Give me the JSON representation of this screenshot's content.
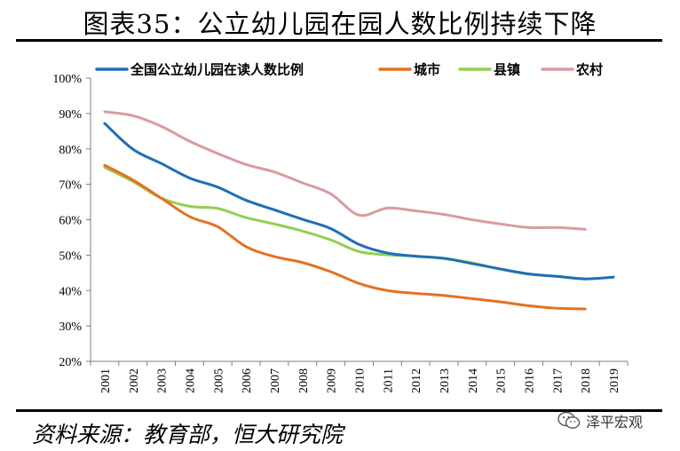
{
  "header": {
    "title": "图表35：公立幼儿园在园人数比例持续下降"
  },
  "footer": {
    "source": "资料来源：教育部，恒大研究院",
    "watermark": "泽平宏观"
  },
  "colors": {
    "national": "#1f6fb5",
    "city": "#e57121",
    "county": "#92d050",
    "rural": "#d99ba0"
  },
  "chart_data": {
    "type": "line",
    "title": "公立幼儿园在园人数比例持续下降",
    "x": [
      "2001",
      "2002",
      "2003",
      "2004",
      "2005",
      "2006",
      "2007",
      "2008",
      "2009",
      "2010",
      "2011",
      "2012",
      "2013",
      "2014",
      "2015",
      "2016",
      "2017",
      "2018",
      "2019"
    ],
    "ylim": [
      20,
      100
    ],
    "yticks": [
      "20%",
      "30%",
      "40%",
      "50%",
      "60%",
      "70%",
      "80%",
      "90%",
      "100%"
    ],
    "ytick_values": [
      20,
      30,
      40,
      50,
      60,
      70,
      80,
      90,
      100
    ],
    "xlabel": "",
    "ylabel": "",
    "grid": false,
    "legend": "top",
    "series": [
      {
        "name": "全国公立幼儿园在读人数比例",
        "color_key": "national",
        "values": [
          87.2,
          79.9,
          75.9,
          71.8,
          69.2,
          65.5,
          62.8,
          60.1,
          57.5,
          53.0,
          50.6,
          49.7,
          49.1,
          47.6,
          46.1,
          44.7,
          44.0,
          43.3,
          43.8
        ]
      },
      {
        "name": "城市",
        "color_key": "city",
        "values": [
          75.4,
          71.2,
          66.1,
          60.9,
          58.0,
          52.4,
          49.6,
          47.9,
          45.3,
          42.0,
          40.0,
          39.2,
          38.6,
          37.7,
          36.8,
          35.7,
          35.0,
          34.8,
          null
        ]
      },
      {
        "name": "县镇",
        "color_key": "county",
        "values": [
          74.8,
          70.8,
          66.1,
          63.8,
          63.2,
          60.6,
          58.8,
          56.8,
          54.3,
          51.0,
          50.1,
          49.7,
          49.1,
          47.8,
          46.0,
          44.6,
          44.0,
          43.2,
          null
        ]
      },
      {
        "name": "农村",
        "color_key": "rural",
        "values": [
          90.5,
          89.4,
          86.4,
          82.2,
          78.7,
          75.6,
          73.5,
          70.4,
          67.3,
          61.3,
          63.3,
          62.5,
          61.5,
          60.0,
          58.8,
          57.8,
          57.8,
          57.3,
          null
        ]
      }
    ]
  }
}
